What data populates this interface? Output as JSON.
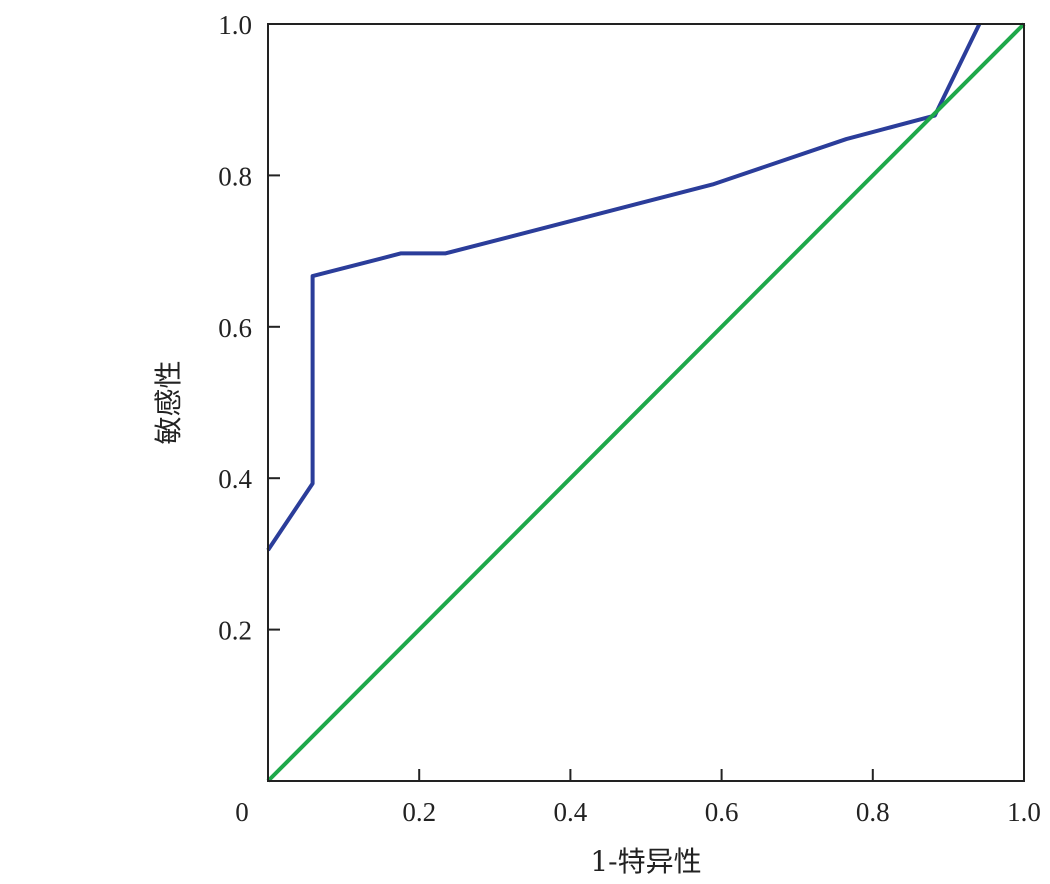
{
  "chart_data": {
    "type": "line",
    "xlabel": "1-特异性",
    "ylabel": "敏感性",
    "xlim": [
      0,
      1.0
    ],
    "ylim": [
      0,
      1.0
    ],
    "x_ticks": [
      0.2,
      0.4,
      0.6,
      0.8,
      1.0
    ],
    "x_tick_labels": [
      "0.2",
      "0.4",
      "0.6",
      "0.8",
      "1.0"
    ],
    "y_ticks": [
      0.2,
      0.4,
      0.6,
      0.8,
      1.0
    ],
    "y_tick_labels": [
      "0.2",
      "0.4",
      "0.6",
      "0.8",
      "1.0"
    ],
    "origin_label": "0",
    "grid": false,
    "legend": "none",
    "series": [
      {
        "color": "#2b3d9a",
        "points": [
          [
            0.0,
            0.305
          ],
          [
            0.059,
            0.393
          ],
          [
            0.059,
            0.667
          ],
          [
            0.176,
            0.697
          ],
          [
            0.235,
            0.697
          ],
          [
            0.588,
            0.788
          ],
          [
            0.765,
            0.848
          ],
          [
            0.882,
            0.879
          ],
          [
            0.941,
            1.0
          ]
        ]
      },
      {
        "color": "#1ea84a",
        "points": [
          [
            0.0,
            0.0
          ],
          [
            1.0,
            1.0
          ]
        ]
      }
    ]
  }
}
